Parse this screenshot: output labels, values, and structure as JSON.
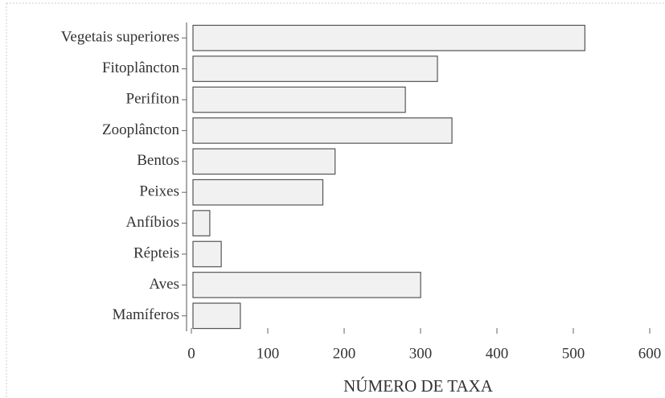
{
  "chart_data": {
    "type": "barh",
    "xlabel": "NÚMERO DE TAXA",
    "categories": [
      "Vegetais superiores",
      "Fitoplâncton",
      "Perifiton",
      "Zooplâncton",
      "Bentos",
      "Peixes",
      "Anfíbios",
      "Répteis",
      "Aves",
      "Mamíferos"
    ],
    "values": [
      513,
      320,
      278,
      339,
      186,
      170,
      22,
      37,
      298,
      62
    ],
    "color": "#f1f1f1",
    "xlim": [
      0,
      600
    ],
    "xticks": [
      0,
      100,
      200,
      300,
      400,
      500,
      600
    ]
  }
}
